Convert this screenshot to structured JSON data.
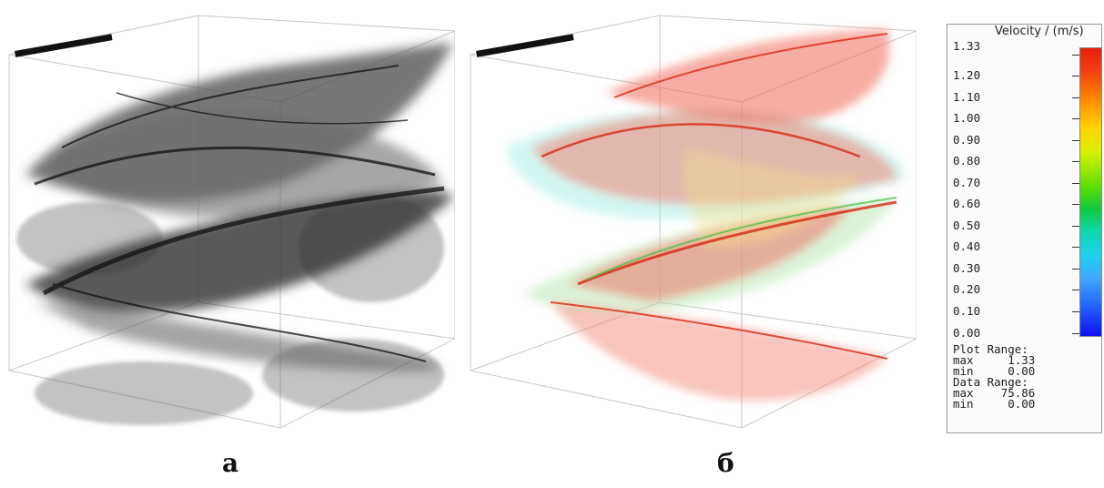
{
  "captions": {
    "a": "а",
    "b": "б"
  },
  "legend": {
    "title": "Velocity / (m/s)",
    "ticks": [
      "1.33",
      "1.20",
      "1.10",
      "1.00",
      "0.90",
      "0.80",
      "0.70",
      "0.60",
      "0.50",
      "0.40",
      "0.30",
      "0.20",
      "0.10",
      "0.00"
    ],
    "plot_range_label": "Plot Range:",
    "plot_max": "max     1.33",
    "plot_min": "min     0.00",
    "data_range_label": "Data Range:",
    "data_max": "max    75.86",
    "data_min": "min     0.00",
    "colormap": [
      "#1010f0",
      "#2060ff",
      "#40a8ff",
      "#20d0f0",
      "#10d8b0",
      "#10c840",
      "#5ee000",
      "#d8f000",
      "#ffd400",
      "#ff8a00",
      "#f04010",
      "#e8200c"
    ]
  }
}
